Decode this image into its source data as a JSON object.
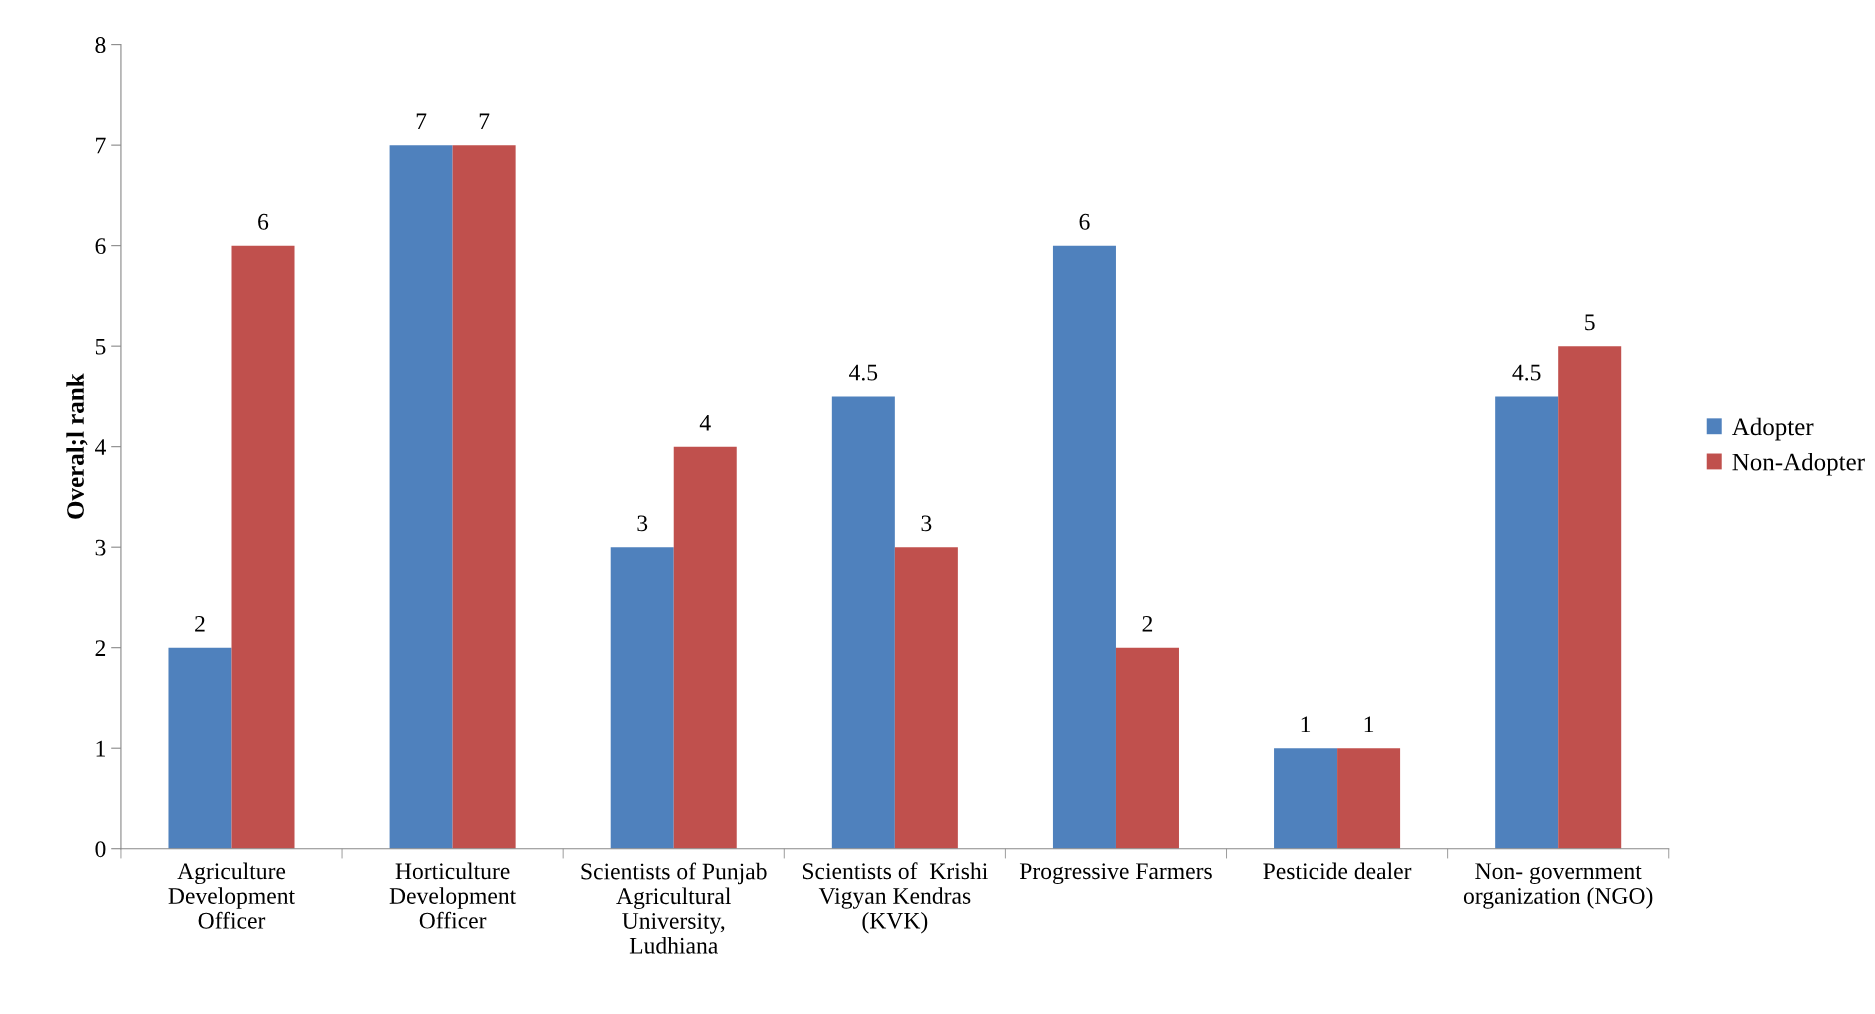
{
  "chart_data": {
    "type": "bar",
    "categories": [
      "Agriculture\nDevelopment\nOfficer",
      "Horticulture\nDevelopment\nOfficer",
      "Scientists of Punjab\nAgricultural\nUniversity,\nLudhiana",
      "Scientists of  Krishi\nVigyan Kendras\n(KVK)",
      "Progressive Farmers",
      "Pesticide dealer",
      "Non- government\norganization (NGO)"
    ],
    "series": [
      {
        "name": "Adopter",
        "color": "#4f81bd",
        "values": [
          2,
          7,
          3,
          4.5,
          6,
          1,
          4.5
        ]
      },
      {
        "name": "Non-Adopter",
        "color": "#c0504d",
        "values": [
          6,
          7,
          4,
          3,
          2,
          1,
          5
        ]
      }
    ],
    "ylabel": "Overal;l rank",
    "ylim": [
      0,
      8
    ],
    "yticks": [
      0,
      1,
      2,
      3,
      4,
      5,
      6,
      7,
      8
    ],
    "data_labels": true,
    "legend": "right",
    "grid": false
  }
}
